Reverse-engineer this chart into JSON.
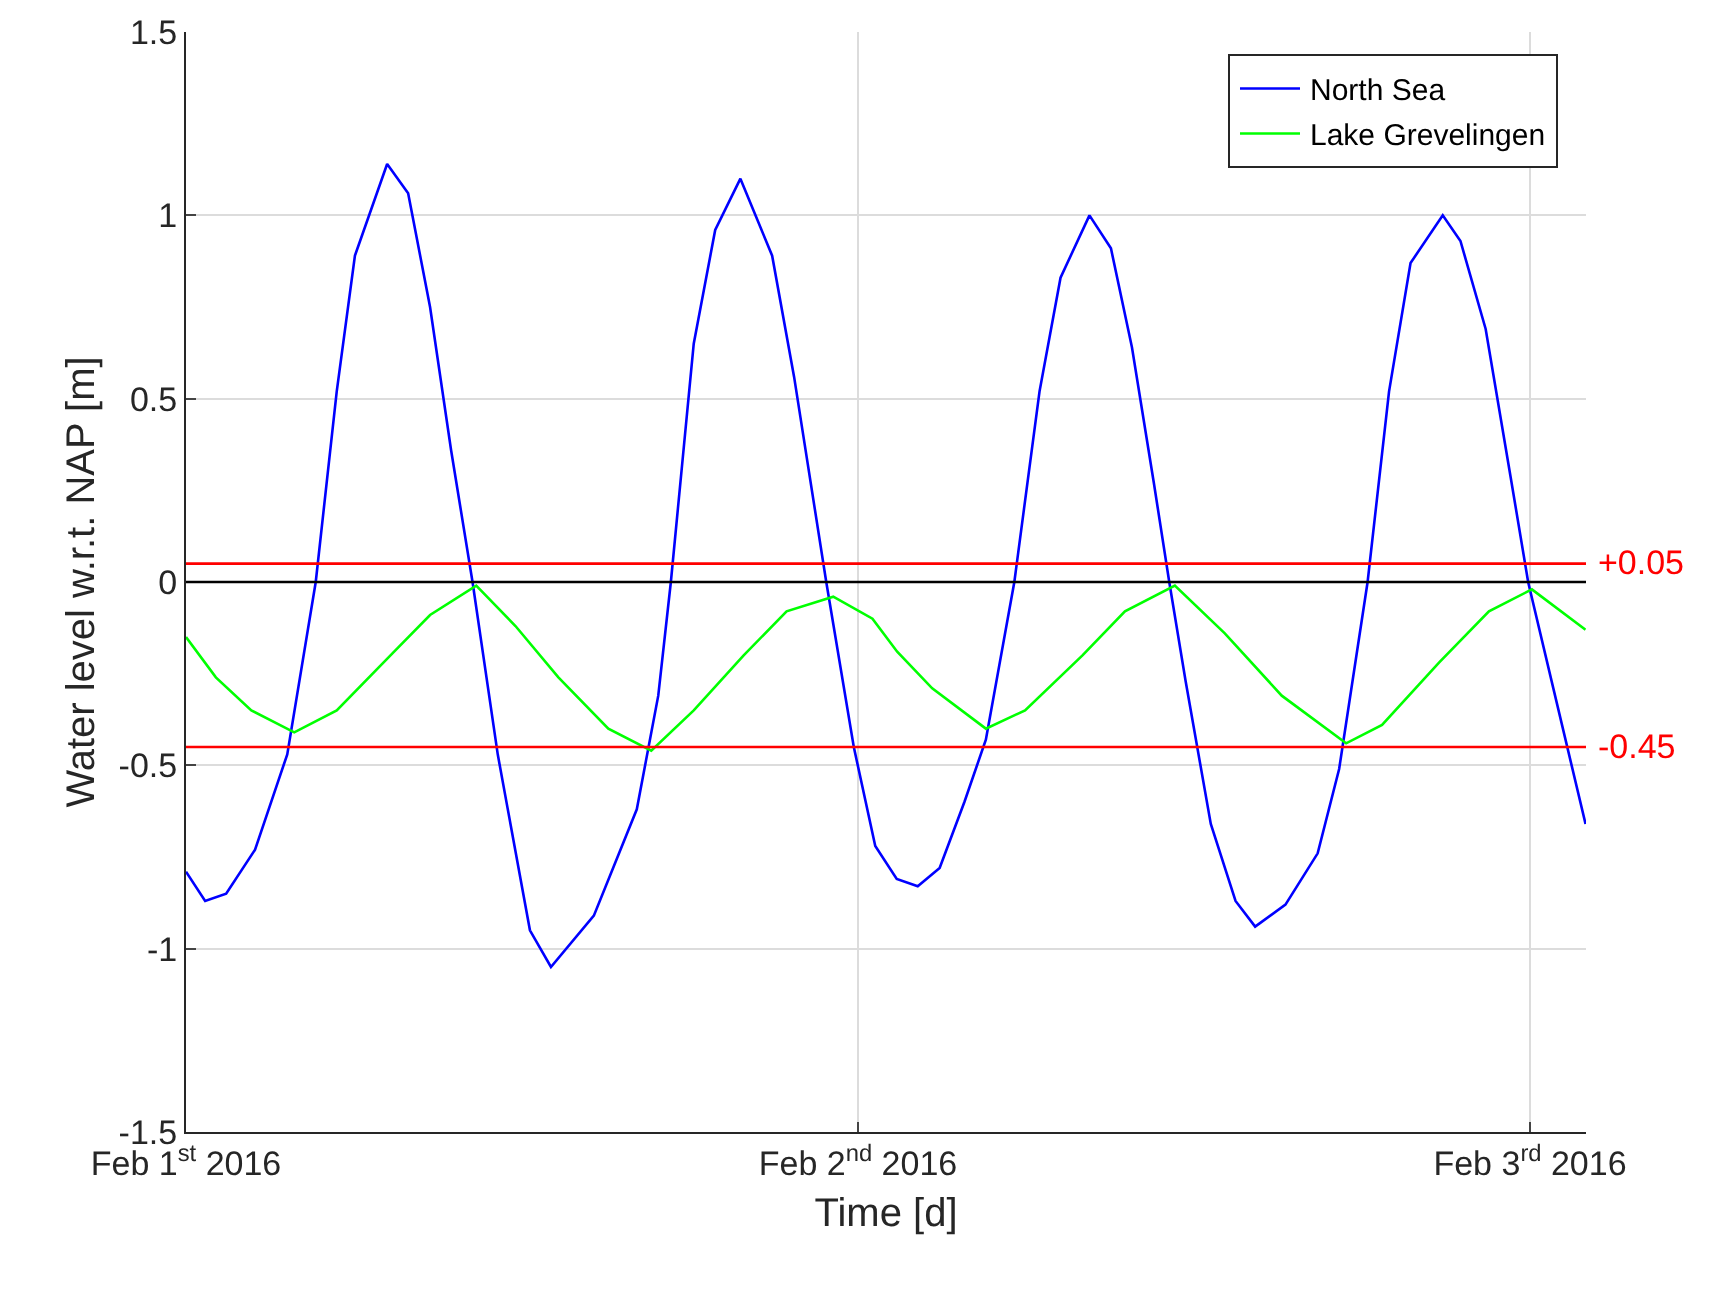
{
  "chart_data": {
    "type": "line",
    "xlabel": "Time [d]",
    "ylabel": "Water level w.r.t. NAP [m]",
    "xlim": [
      "2016-02-01T00:00",
      "2016-02-03T02:00"
    ],
    "xticks": [
      {
        "value": "2016-02-01",
        "label": "Feb 1$^{st}$ 2016"
      },
      {
        "value": "2016-02-02",
        "label": "Feb 2$^{nd}$ 2016"
      },
      {
        "value": "2016-02-03",
        "label": "Feb 3$^{rd}$ 2016"
      }
    ],
    "ylim": [
      -1.5,
      1.5
    ],
    "yticks": [
      -1.5,
      -1,
      -0.5,
      0,
      0.5,
      1,
      1.5
    ],
    "grid": true,
    "legend": "top right",
    "line_style": "solid",
    "series": [
      {
        "name": "North Sea",
        "color": "#0000ff",
        "x": [
          "2016-02-01T00:00",
          "2016-02-01T00:41",
          "2016-02-01T01:26",
          "2016-02-01T02:28",
          "2016-02-01T03:37",
          "2016-02-01T04:38",
          "2016-02-01T05:23",
          "2016-02-01T06:02",
          "2016-02-01T07:11",
          "2016-02-01T07:56",
          "2016-02-01T08:43",
          "2016-02-01T09:28",
          "2016-02-01T10:14",
          "2016-02-01T11:08",
          "2016-02-01T12:17",
          "2016-02-01T13:02",
          "2016-02-01T14:34",
          "2016-02-01T16:06",
          "2016-02-01T16:52",
          "2016-02-01T17:19",
          "2016-02-01T18:08",
          "2016-02-01T18:54",
          "2016-02-01T19:48",
          "2016-02-01T20:56",
          "2016-02-01T21:43",
          "2016-02-01T22:52",
          "2016-02-01T23:51",
          "2016-02-02T00:37",
          "2016-02-02T01:23",
          "2016-02-02T02:08",
          "2016-02-02T02:55",
          "2016-02-02T03:48",
          "2016-02-02T04:34",
          "2016-02-02T05:35",
          "2016-02-02T06:29",
          "2016-02-02T07:14",
          "2016-02-02T08:16",
          "2016-02-02T09:02",
          "2016-02-02T09:47",
          "2016-02-02T10:34",
          "2016-02-02T11:07",
          "2016-02-02T11:42",
          "2016-02-02T12:36",
          "2016-02-02T13:29",
          "2016-02-02T14:11",
          "2016-02-02T15:16",
          "2016-02-02T16:25",
          "2016-02-02T17:11",
          "2016-02-02T18:12",
          "2016-02-02T18:58",
          "2016-02-02T19:44",
          "2016-02-02T20:53",
          "2016-02-02T21:31",
          "2016-02-02T22:25",
          "2016-02-02T23:18",
          "2016-02-02T23:56",
          "2016-02-03T00:50",
          "2016-02-03T01:59"
        ],
        "values": [
          -0.79,
          -0.87,
          -0.85,
          -0.73,
          -0.47,
          0.0,
          0.52,
          0.89,
          1.14,
          1.06,
          0.75,
          0.36,
          0.0,
          -0.47,
          -0.95,
          -1.05,
          -0.91,
          -0.62,
          -0.31,
          0.0,
          0.65,
          0.96,
          1.1,
          0.89,
          0.56,
          0.0,
          -0.45,
          -0.72,
          -0.81,
          -0.83,
          -0.78,
          -0.6,
          -0.43,
          0.0,
          0.52,
          0.83,
          1.0,
          0.91,
          0.64,
          0.27,
          0.0,
          -0.27,
          -0.66,
          -0.87,
          -0.94,
          -0.88,
          -0.74,
          -0.51,
          0.0,
          0.52,
          0.87,
          1.0,
          0.93,
          0.69,
          0.29,
          0.0,
          -0.29,
          -0.66
        ]
      },
      {
        "name": "Lake Grevelingen",
        "color": "#00ff00",
        "x": [
          "2016-02-01T00:00",
          "2016-02-01T01:04",
          "2016-02-01T02:20",
          "2016-02-01T03:52",
          "2016-02-01T05:23",
          "2016-02-01T07:26",
          "2016-02-01T08:43",
          "2016-02-01T10:22",
          "2016-02-01T11:46",
          "2016-02-01T13:18",
          "2016-02-01T15:05",
          "2016-02-01T16:37",
          "2016-02-01T18:08",
          "2016-02-01T19:55",
          "2016-02-01T21:27",
          "2016-02-01T23:07",
          "2016-02-02T00:31",
          "2016-02-02T01:24",
          "2016-02-02T02:39",
          "2016-02-02T04:34",
          "2016-02-02T05:58",
          "2016-02-02T08:01",
          "2016-02-02T09:32",
          "2016-02-02T11:19",
          "2016-02-02T13:06",
          "2016-02-02T15:08",
          "2016-02-02T17:26",
          "2016-02-02T18:43",
          "2016-02-02T20:45",
          "2016-02-02T22:32",
          "2016-02-03T00:04",
          "2016-02-03T01:59"
        ],
        "values": [
          -0.15,
          -0.26,
          -0.35,
          -0.41,
          -0.35,
          -0.19,
          -0.09,
          -0.01,
          -0.12,
          -0.26,
          -0.4,
          -0.46,
          -0.35,
          -0.2,
          -0.08,
          -0.04,
          -0.1,
          -0.19,
          -0.29,
          -0.4,
          -0.35,
          -0.2,
          -0.08,
          -0.01,
          -0.14,
          -0.31,
          -0.44,
          -0.39,
          -0.22,
          -0.08,
          -0.02,
          -0.13
        ]
      }
    ],
    "ref_lines": [
      {
        "axis": "y",
        "value": 0,
        "color": "#000000"
      },
      {
        "axis": "y",
        "value": 0.05,
        "label": "+0.05",
        "color": "#ff0000"
      },
      {
        "axis": "y",
        "value": -0.45,
        "label": "-0.45",
        "color": "#ff0000"
      }
    ]
  }
}
